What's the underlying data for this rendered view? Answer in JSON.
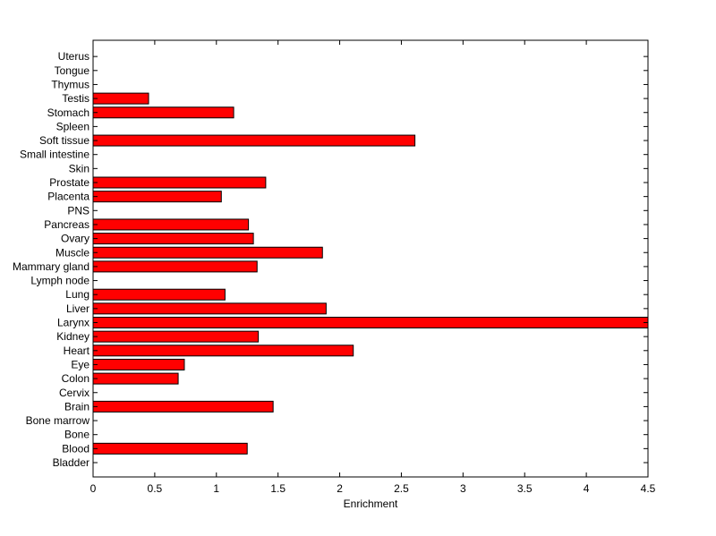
{
  "chart_data": {
    "type": "bar",
    "orientation": "horizontal",
    "title": "",
    "xlabel": "Enrichment",
    "ylabel": "",
    "xlim": [
      0,
      4.5
    ],
    "xticks": [
      "0",
      "0.5",
      "1",
      "1.5",
      "2",
      "2.5",
      "3",
      "3.5",
      "4",
      "4.5"
    ],
    "grid": false,
    "bar_color": "#ff0000",
    "categories": [
      "Bladder",
      "Blood",
      "Bone",
      "Bone marrow",
      "Brain",
      "Cervix",
      "Colon",
      "Eye",
      "Heart",
      "Kidney",
      "Larynx",
      "Liver",
      "Lung",
      "Lymph node",
      "Mammary gland",
      "Muscle",
      "Ovary",
      "Pancreas",
      "PNS",
      "Placenta",
      "Prostate",
      "Skin",
      "Small intestine",
      "Soft tissue",
      "Spleen",
      "Stomach",
      "Testis",
      "Thymus",
      "Tongue",
      "Uterus"
    ],
    "values": [
      0,
      1.25,
      0,
      0,
      1.46,
      0,
      0.69,
      0.74,
      2.11,
      1.34,
      4.5,
      1.89,
      1.07,
      0,
      1.33,
      1.86,
      1.3,
      1.26,
      0,
      1.04,
      1.4,
      0,
      0,
      2.61,
      0,
      1.14,
      0.45,
      0,
      0,
      0
    ]
  }
}
